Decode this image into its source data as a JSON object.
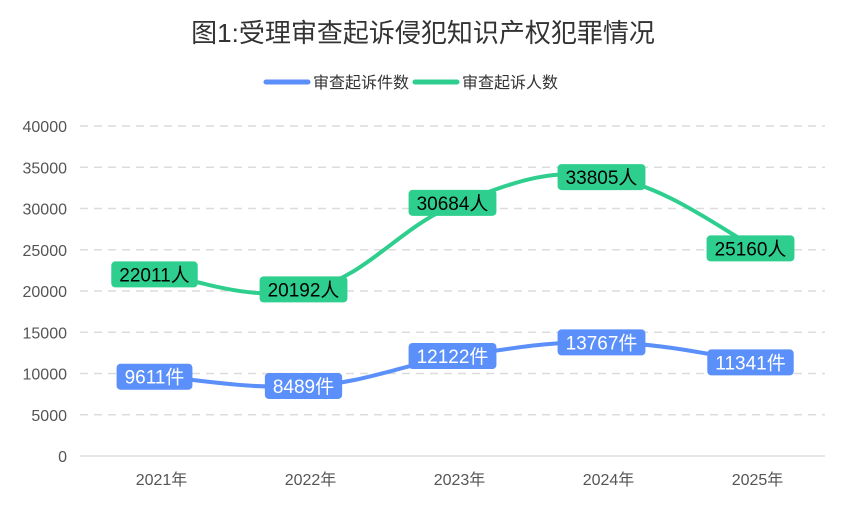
{
  "chart_data": {
    "type": "line",
    "title": "图1:受理审查起诉侵犯知识产权犯罪情况",
    "categories": [
      "2021年",
      "2022年",
      "2023年",
      "2024年",
      "2025年"
    ],
    "ylim": [
      0,
      40000
    ],
    "yticks": [
      0,
      5000,
      10000,
      15000,
      20000,
      25000,
      30000,
      35000,
      40000
    ],
    "grid": true,
    "legend_position": "top",
    "series": [
      {
        "name": "审查起诉件数",
        "values": [
          9611,
          8489,
          12122,
          13767,
          11341
        ],
        "unit": "件",
        "color": "#5b8ff9",
        "label_text_color": "#ffffff"
      },
      {
        "name": "审查起诉人数",
        "values": [
          22011,
          20192,
          30684,
          33805,
          25160
        ],
        "unit": "人",
        "color": "#2ecf8e",
        "label_text_color": "#000000"
      }
    ]
  }
}
